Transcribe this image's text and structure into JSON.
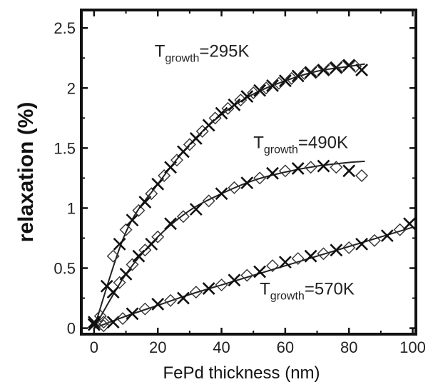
{
  "chart_data": {
    "type": "scatter",
    "xlabel": "FePd thickness (nm)",
    "ylabel": "relaxation (%)",
    "xlim": [
      -4,
      101
    ],
    "ylim": [
      -0.05,
      2.65
    ],
    "xticks": [
      0,
      20,
      40,
      60,
      80,
      100
    ],
    "yticks": [
      0,
      0.5,
      1,
      1.5,
      2,
      2.5
    ],
    "xtick_labels": [
      "0",
      "20",
      "40",
      "60",
      "80",
      "100"
    ],
    "ytick_labels": [
      "0",
      "0.5",
      "1",
      "1.5",
      "2",
      "2.5"
    ],
    "grid": false,
    "series": [
      {
        "label_base": "T",
        "label_sub": "growth",
        "label_rest": "=295K",
        "points": [
          [
            0,
            0.03
          ],
          [
            2,
            0.1
          ],
          [
            4,
            0.35
          ],
          [
            6,
            0.6
          ],
          [
            8,
            0.7
          ],
          [
            10,
            0.82
          ],
          [
            12,
            0.9
          ],
          [
            14,
            0.98
          ],
          [
            16,
            1.05
          ],
          [
            18,
            1.12
          ],
          [
            20,
            1.2
          ],
          [
            22,
            1.27
          ],
          [
            24,
            1.34
          ],
          [
            26,
            1.4
          ],
          [
            28,
            1.47
          ],
          [
            30,
            1.53
          ],
          [
            32,
            1.58
          ],
          [
            34,
            1.64
          ],
          [
            36,
            1.69
          ],
          [
            38,
            1.75
          ],
          [
            40,
            1.79
          ],
          [
            42,
            1.83
          ],
          [
            44,
            1.86
          ],
          [
            46,
            1.9
          ],
          [
            48,
            1.93
          ],
          [
            50,
            1.96
          ],
          [
            52,
            1.98
          ],
          [
            54,
            2.0
          ],
          [
            56,
            2.02
          ],
          [
            58,
            2.04
          ],
          [
            60,
            2.06
          ],
          [
            62,
            2.08
          ],
          [
            64,
            2.1
          ],
          [
            66,
            2.12
          ],
          [
            68,
            2.13
          ],
          [
            70,
            2.14
          ],
          [
            72,
            2.15
          ],
          [
            74,
            2.16
          ],
          [
            76,
            2.17
          ],
          [
            78,
            2.18
          ],
          [
            80,
            2.19
          ],
          [
            82,
            2.18
          ],
          [
            84,
            2.15
          ]
        ],
        "fit": [
          [
            0,
            0
          ],
          [
            10,
            0.8
          ],
          [
            20,
            1.2
          ],
          [
            30,
            1.53
          ],
          [
            40,
            1.78
          ],
          [
            50,
            1.95
          ],
          [
            60,
            2.06
          ],
          [
            70,
            2.14
          ],
          [
            80,
            2.18
          ],
          [
            85,
            2.2
          ]
        ]
      },
      {
        "label_base": "T",
        "label_sub": "growth",
        "label_rest": "=490K",
        "points": [
          [
            0,
            0.03
          ],
          [
            3,
            0.05
          ],
          [
            6,
            0.3
          ],
          [
            8,
            0.38
          ],
          [
            10,
            0.45
          ],
          [
            12,
            0.53
          ],
          [
            14,
            0.6
          ],
          [
            16,
            0.65
          ],
          [
            18,
            0.7
          ],
          [
            20,
            0.76
          ],
          [
            24,
            0.87
          ],
          [
            28,
            0.93
          ],
          [
            32,
            0.99
          ],
          [
            36,
            1.06
          ],
          [
            40,
            1.12
          ],
          [
            44,
            1.17
          ],
          [
            48,
            1.21
          ],
          [
            52,
            1.25
          ],
          [
            56,
            1.29
          ],
          [
            60,
            1.31
          ],
          [
            64,
            1.33
          ],
          [
            68,
            1.34
          ],
          [
            72,
            1.35
          ],
          [
            76,
            1.34
          ],
          [
            80,
            1.31
          ],
          [
            84,
            1.27
          ]
        ],
        "fit": [
          [
            0,
            0
          ],
          [
            10,
            0.45
          ],
          [
            20,
            0.76
          ],
          [
            30,
            0.98
          ],
          [
            40,
            1.12
          ],
          [
            50,
            1.23
          ],
          [
            60,
            1.3
          ],
          [
            70,
            1.35
          ],
          [
            80,
            1.38
          ],
          [
            85,
            1.39
          ]
        ]
      },
      {
        "label_base": "T",
        "label_sub": "growth",
        "label_rest": "=570K",
        "points": [
          [
            0,
            0.05
          ],
          [
            3,
            0.02
          ],
          [
            6,
            0.05
          ],
          [
            9,
            0.08
          ],
          [
            12,
            0.12
          ],
          [
            16,
            0.16
          ],
          [
            20,
            0.2
          ],
          [
            24,
            0.23
          ],
          [
            28,
            0.25
          ],
          [
            32,
            0.3
          ],
          [
            36,
            0.33
          ],
          [
            40,
            0.36
          ],
          [
            44,
            0.4
          ],
          [
            48,
            0.44
          ],
          [
            52,
            0.47
          ],
          [
            56,
            0.52
          ],
          [
            60,
            0.55
          ],
          [
            64,
            0.58
          ],
          [
            68,
            0.6
          ],
          [
            72,
            0.62
          ],
          [
            76,
            0.65
          ],
          [
            80,
            0.67
          ],
          [
            84,
            0.7
          ],
          [
            88,
            0.73
          ],
          [
            92,
            0.77
          ],
          [
            96,
            0.82
          ],
          [
            99,
            0.87
          ]
        ],
        "fit": [
          [
            0,
            0
          ],
          [
            10,
            0.1
          ],
          [
            20,
            0.19
          ],
          [
            30,
            0.28
          ],
          [
            40,
            0.36
          ],
          [
            50,
            0.44
          ],
          [
            60,
            0.52
          ],
          [
            70,
            0.6
          ],
          [
            80,
            0.68
          ],
          [
            90,
            0.76
          ],
          [
            100,
            0.84
          ]
        ]
      }
    ]
  }
}
